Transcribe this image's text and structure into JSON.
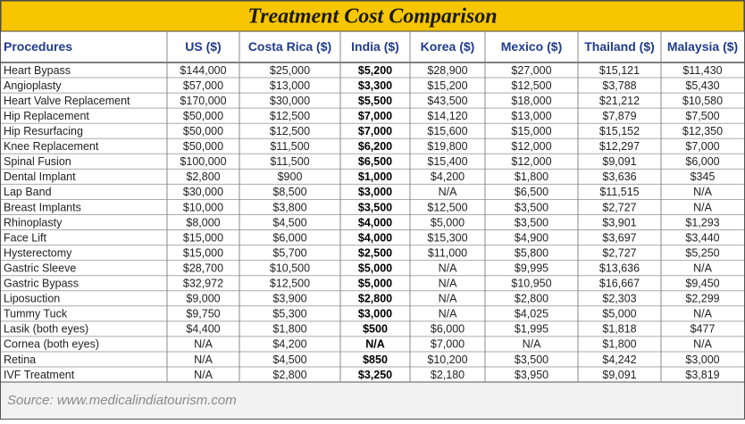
{
  "header": {
    "title": "Treatment Cost Comparison"
  },
  "table": {
    "columns": [
      "Procedures",
      "US ($)",
      "Costa Rica ($)",
      "India ($)",
      "Korea ($)",
      "Mexico ($)",
      "Thailand ($)",
      "Malaysia ($)"
    ],
    "rows": [
      [
        "Heart Bypass",
        "$144,000",
        "$25,000",
        "$5,200",
        "$28,900",
        "$27,000",
        "$15,121",
        "$11,430"
      ],
      [
        "Angioplasty",
        "$57,000",
        "$13,000",
        "$3,300",
        "$15,200",
        "$12,500",
        "$3,788",
        "$5,430"
      ],
      [
        "Heart Valve Replacement",
        "$170,000",
        "$30,000",
        "$5,500",
        "$43,500",
        "$18,000",
        "$21,212",
        "$10,580"
      ],
      [
        "Hip Replacement",
        "$50,000",
        "$12,500",
        "$7,000",
        "$14,120",
        "$13,000",
        "$7,879",
        "$7,500"
      ],
      [
        "Hip Resurfacing",
        "$50,000",
        "$12,500",
        "$7,000",
        "$15,600",
        "$15,000",
        "$15,152",
        "$12,350"
      ],
      [
        "Knee Replacement",
        "$50,000",
        "$11,500",
        "$6,200",
        "$19,800",
        "$12,000",
        "$12,297",
        "$7,000"
      ],
      [
        "Spinal Fusion",
        "$100,000",
        "$11,500",
        "$6,500",
        "$15,400",
        "$12,000",
        "$9,091",
        "$6,000"
      ],
      [
        "Dental Implant",
        "$2,800",
        "$900",
        "$1,000",
        "$4,200",
        "$1,800",
        "$3,636",
        "$345"
      ],
      [
        "Lap Band",
        "$30,000",
        "$8,500",
        "$3,000",
        "N/A",
        "$6,500",
        "$11,515",
        "N/A"
      ],
      [
        "Breast Implants",
        "$10,000",
        "$3,800",
        "$3,500",
        "$12,500",
        "$3,500",
        "$2,727",
        "N/A"
      ],
      [
        "Rhinoplasty",
        "$8,000",
        "$4,500",
        "$4,000",
        "$5,000",
        "$3,500",
        "$3,901",
        "$1,293"
      ],
      [
        "Face Lift",
        "$15,000",
        "$6,000",
        "$4,000",
        "$15,300",
        "$4,900",
        "$3,697",
        "$3,440"
      ],
      [
        "Hysterectomy",
        "$15,000",
        "$5,700",
        "$2,500",
        "$11,000",
        "$5,800",
        "$2,727",
        "$5,250"
      ],
      [
        "Gastric Sleeve",
        "$28,700",
        "$10,500",
        "$5,000",
        "N/A",
        "$9,995",
        "$13,636",
        "N/A"
      ],
      [
        "Gastric Bypass",
        "$32,972",
        "$12,500",
        "$5,000",
        "N/A",
        "$10,950",
        "$16,667",
        "$9,450"
      ],
      [
        "Liposuction",
        "$9,000",
        "$3,900",
        "$2,800",
        "N/A",
        "$2,800",
        "$2,303",
        "$2,299"
      ],
      [
        "Tummy Tuck",
        "$9,750",
        "$5,300",
        "$3,000",
        "N/A",
        "$4,025",
        "$5,000",
        "N/A"
      ],
      [
        "Lasik (both eyes)",
        "$4,400",
        "$1,800",
        "$500",
        "$6,000",
        "$1,995",
        "$1,818",
        "$477"
      ],
      [
        "Cornea (both eyes)",
        "N/A",
        "$4,200",
        "N/A",
        "$7,000",
        "N/A",
        "$1,800",
        "N/A"
      ],
      [
        "Retina",
        "N/A",
        "$4,500",
        "$850",
        "$10,200",
        "$3,500",
        "$4,242",
        "$3,000"
      ],
      [
        "IVF Treatment",
        "N/A",
        "$2,800",
        "$3,250",
        "$2,180",
        "$3,950",
        "$9,091",
        "$3,819"
      ]
    ]
  },
  "footer": {
    "source": "Source: www.medicalindiatourism.com"
  }
}
